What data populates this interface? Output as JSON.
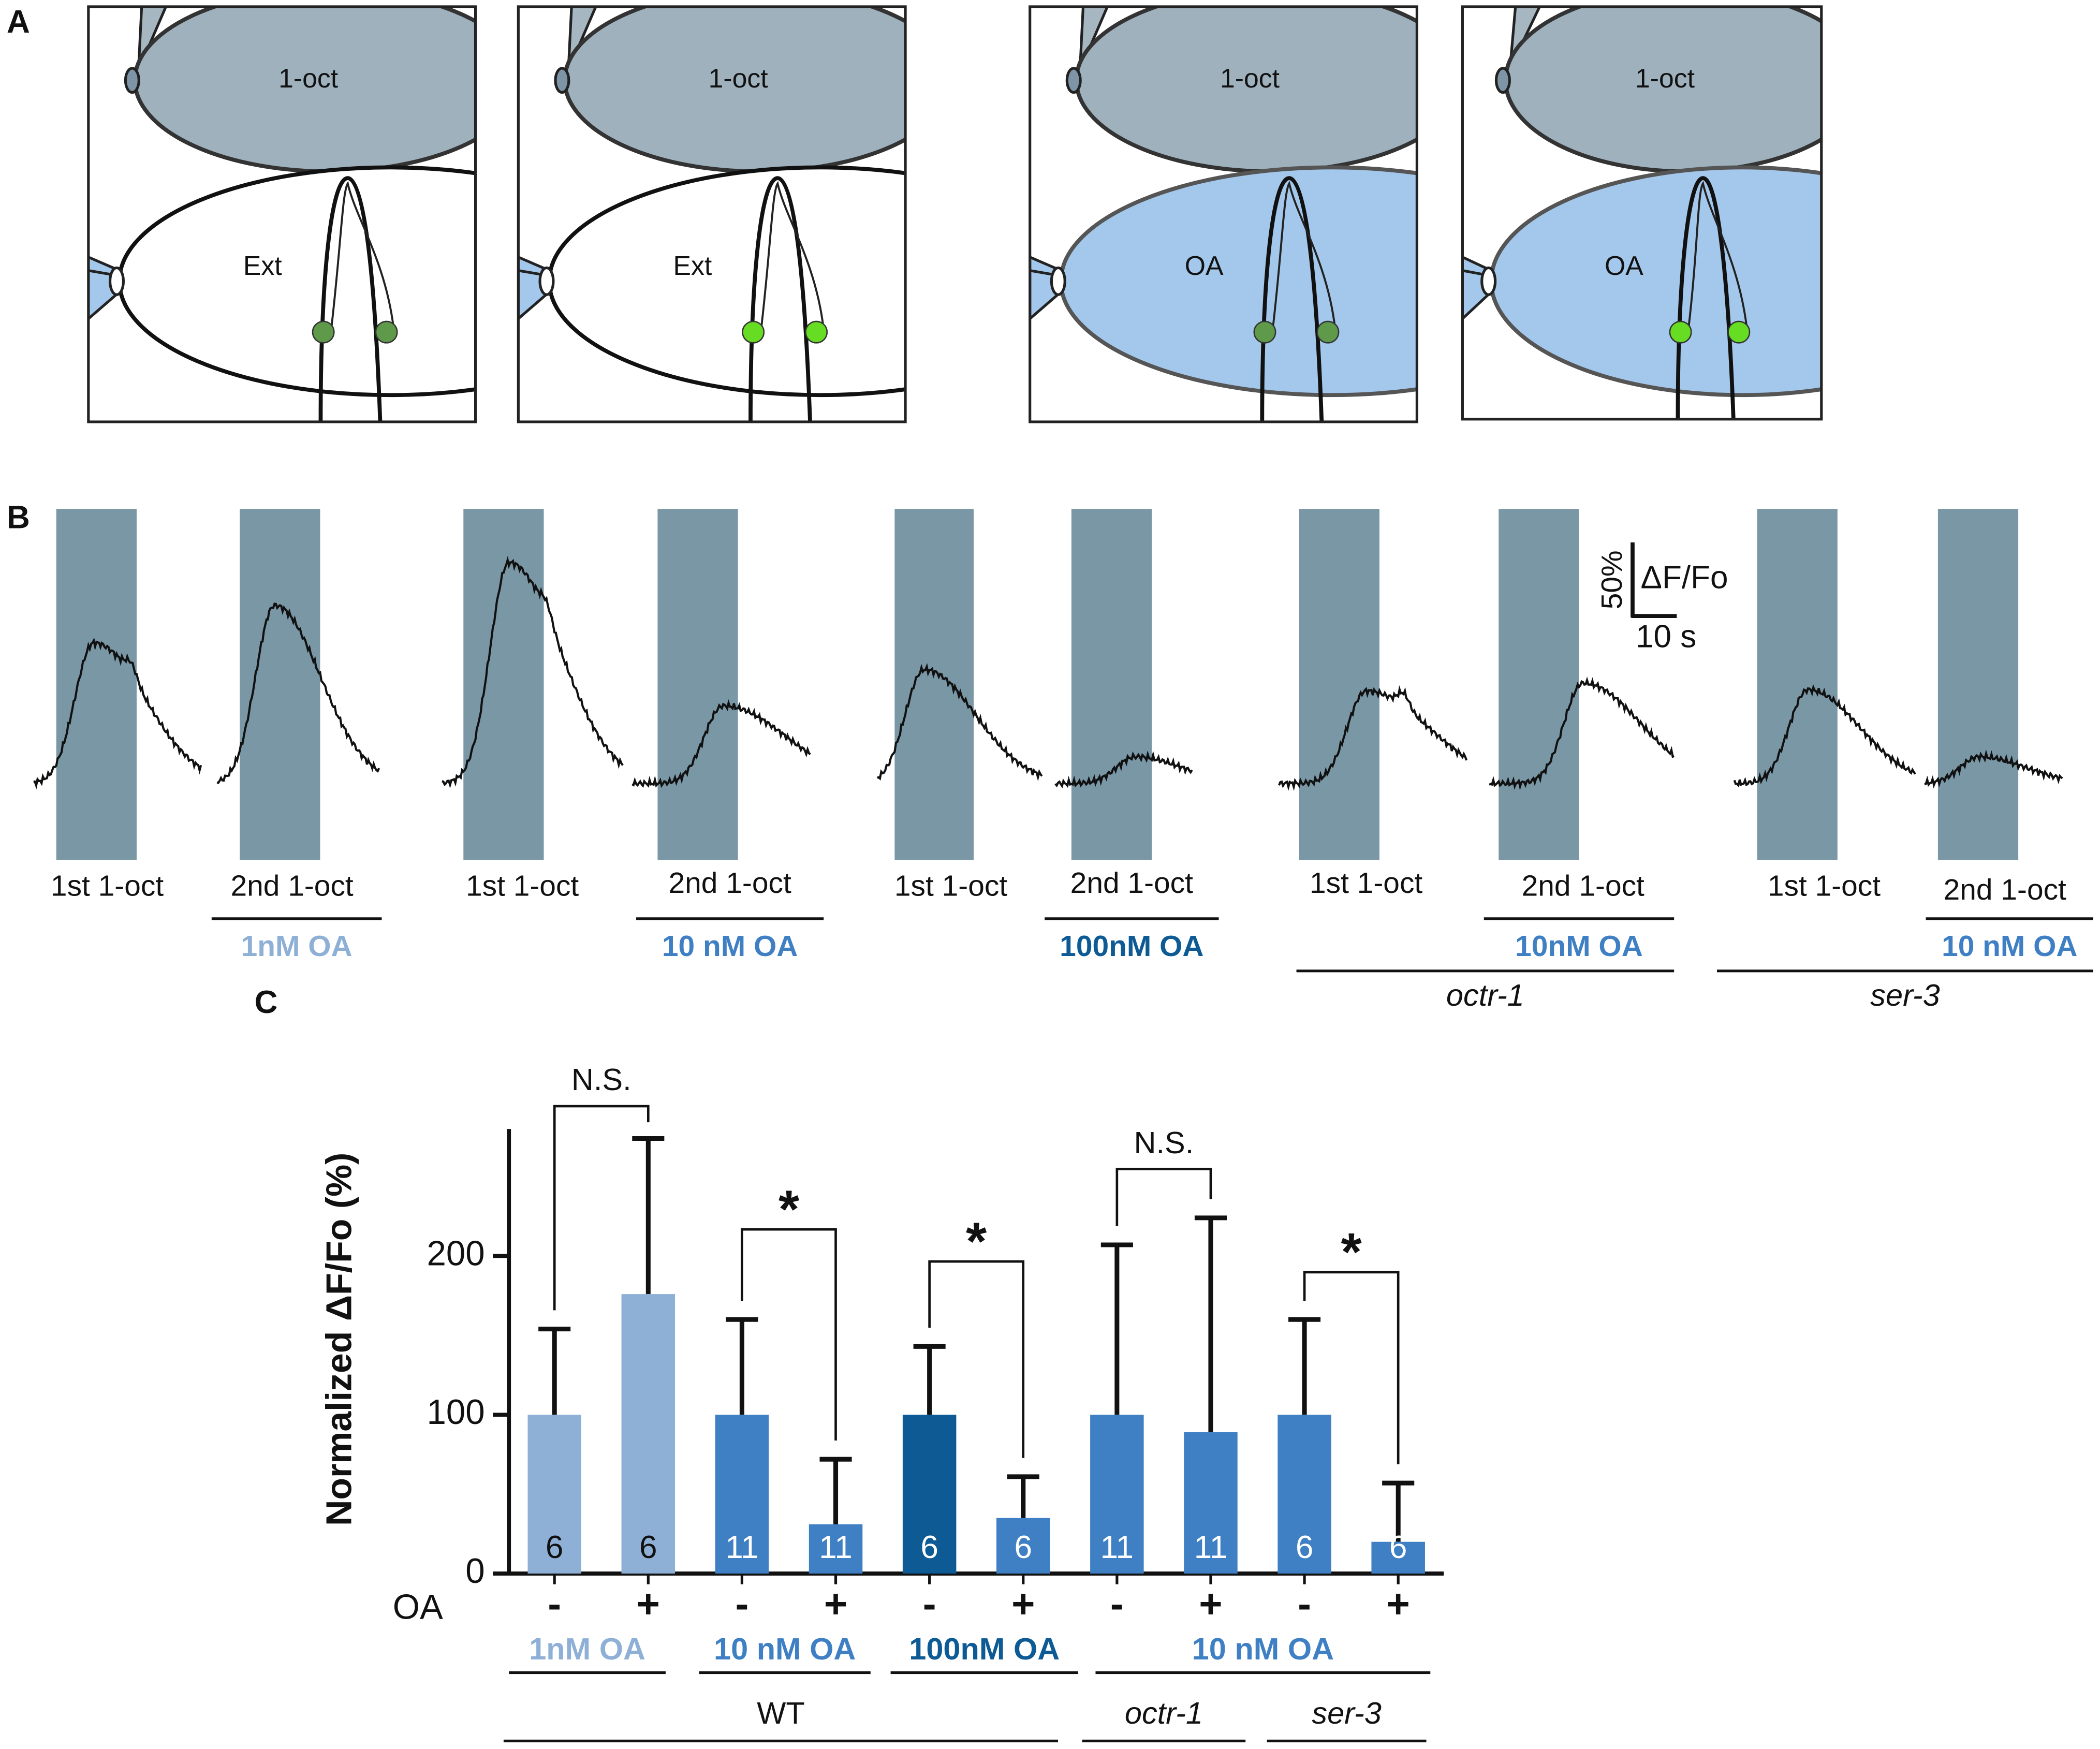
{
  "panel_labels": [
    "A",
    "B",
    "C"
  ],
  "panel_a": {
    "diagrams": [
      {
        "top": "1-oct",
        "bottom": "Ext"
      },
      {
        "top": "1-oct",
        "bottom": "Ext"
      },
      {
        "top": "1-oct",
        "bottom": "OA"
      },
      {
        "top": "1-oct",
        "bottom": "OA"
      }
    ]
  },
  "panel_b": {
    "trace_labels": [
      "1st 1-oct",
      "2nd 1-oct",
      "1st 1-oct",
      "2nd 1-oct",
      "1st 1-oct",
      "2nd 1-oct",
      "1st 1-oct",
      "2nd 1-oct",
      "1st 1-oct",
      "2nd 1-oct"
    ],
    "treatments": [
      "1nM OA",
      "10 nM OA",
      "100nM OA",
      "10nM OA",
      "10 nM OA"
    ],
    "treatment_colors": [
      "#8fb0d6",
      "#3f7fc4",
      "#0d5a94",
      "#3f7fc4",
      "#3f7fc4"
    ],
    "genotypes": [
      "octr-1",
      "ser-3"
    ],
    "scale_y": "50%",
    "scale_unit": "ΔF/Fo",
    "scale_x": "10 s"
  },
  "chart_data": {
    "type": "bar",
    "ylabel": "Normalized ΔF/Fo (%)",
    "row_label": "OA",
    "categories": [
      "-",
      "+",
      "-",
      "+",
      "-",
      "+",
      "-",
      "+",
      "-",
      "+"
    ],
    "values": [
      100,
      176,
      100,
      31,
      100,
      35,
      100,
      89,
      100,
      20
    ],
    "errors": [
      54,
      98,
      60,
      41,
      43,
      26,
      107,
      135,
      60,
      37
    ],
    "colors": [
      "#8fb0d6",
      "#8fb0d6",
      "#3f7fc4",
      "#3f7fc4",
      "#0d5a94",
      "#3f7fc4",
      "#3f7fc4",
      "#3f7fc4",
      "#3f7fc4",
      "#3f7fc4"
    ],
    "n_labels": [
      6,
      6,
      11,
      11,
      6,
      6,
      11,
      11,
      6,
      6
    ],
    "significance": [
      "N.S.",
      "*",
      "*",
      "N.S.",
      "*"
    ],
    "treatments": [
      "1nM OA",
      "10 nM OA",
      "100nM OA",
      "10 nM OA"
    ],
    "treatment_colors": [
      "#8fb0d6",
      "#3f7fc4",
      "#0d5a94",
      "#3f7fc4"
    ],
    "genotypes": [
      "WT",
      "octr-1",
      "ser-3"
    ],
    "ylim": [
      0,
      280
    ],
    "yticks": [
      0,
      100,
      200
    ]
  }
}
